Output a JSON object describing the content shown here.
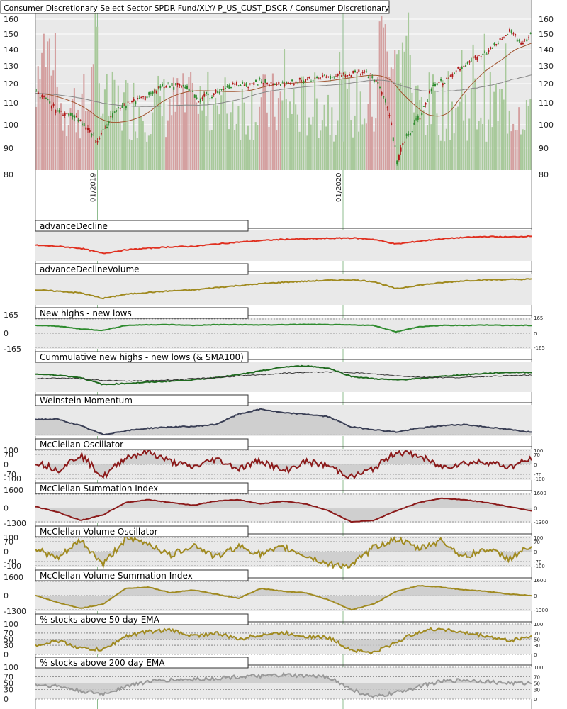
{
  "title": "Consumer Discretionary Select Sector SPDR Fund/XLY/ P_US_CUST_DSCR / Consumer Discretionary",
  "colors": {
    "background": "#e9e9e9",
    "grid": "#ffffff",
    "up_candle": "#2e8b2e",
    "down_candle": "#b01818",
    "volume_up": "#a8c99b",
    "volume_down": "#d4a0a0",
    "sma_short": "#a0522d",
    "sma_long": "#888888",
    "vertical_marker": "#8fbc8f"
  },
  "chart_data": [
    {
      "type": "candlestick",
      "title": "Consumer Discretionary Select Sector SPDR Fund/XLY/ P_US_CUST_DSCR / Consumer Discretionary",
      "ylim": [
        80,
        160
      ],
      "yticks_left": [
        "160",
        "150",
        "140",
        "130",
        "120",
        "110",
        "100",
        "90",
        "80"
      ],
      "yticks_right": [
        "160",
        "150",
        "140",
        "130",
        "120",
        "110",
        "100",
        "90",
        "80"
      ],
      "x_labels": [
        "01/2019",
        "01/2020"
      ],
      "price_keypoints": [
        {
          "t": 0.0,
          "v": 115
        },
        {
          "t": 0.04,
          "v": 107
        },
        {
          "t": 0.08,
          "v": 103
        },
        {
          "t": 0.11,
          "v": 97
        },
        {
          "t": 0.12,
          "v": 93
        },
        {
          "t": 0.14,
          "v": 100
        },
        {
          "t": 0.17,
          "v": 108
        },
        {
          "t": 0.22,
          "v": 113
        },
        {
          "t": 0.26,
          "v": 119
        },
        {
          "t": 0.3,
          "v": 118
        },
        {
          "t": 0.33,
          "v": 112
        },
        {
          "t": 0.36,
          "v": 115
        },
        {
          "t": 0.4,
          "v": 119
        },
        {
          "t": 0.45,
          "v": 121
        },
        {
          "t": 0.5,
          "v": 120
        },
        {
          "t": 0.55,
          "v": 122
        },
        {
          "t": 0.61,
          "v": 125
        },
        {
          "t": 0.67,
          "v": 126
        },
        {
          "t": 0.69,
          "v": 121
        },
        {
          "t": 0.71,
          "v": 110
        },
        {
          "t": 0.73,
          "v": 85
        },
        {
          "t": 0.75,
          "v": 95
        },
        {
          "t": 0.78,
          "v": 105
        },
        {
          "t": 0.8,
          "v": 118
        },
        {
          "t": 0.83,
          "v": 122
        },
        {
          "t": 0.86,
          "v": 130
        },
        {
          "t": 0.9,
          "v": 137
        },
        {
          "t": 0.94,
          "v": 146
        },
        {
          "t": 0.96,
          "v": 153
        },
        {
          "t": 0.98,
          "v": 144
        },
        {
          "t": 1.0,
          "v": 149
        }
      ]
    },
    {
      "type": "line",
      "title": "advanceDecline",
      "series": [
        {
          "values": [
            0.55,
            0.5,
            0.42,
            0.2,
            0.35,
            0.42,
            0.48,
            0.5,
            0.6,
            0.68,
            0.75,
            0.8,
            0.82,
            0.84,
            0.86,
            0.8,
            0.6,
            0.72,
            0.82,
            0.88,
            0.92,
            0.9,
            0.94
          ]
        }
      ]
    },
    {
      "type": "line",
      "title": "advanceDeclineVolume",
      "series": [
        {
          "values": [
            0.5,
            0.45,
            0.38,
            0.15,
            0.32,
            0.4,
            0.46,
            0.5,
            0.6,
            0.68,
            0.76,
            0.82,
            0.86,
            0.9,
            0.92,
            0.85,
            0.55,
            0.7,
            0.8,
            0.88,
            0.92,
            0.93,
            0.95
          ]
        }
      ]
    },
    {
      "type": "line",
      "title": "New highs - new lows",
      "yticks_left": [
        "165",
        "0",
        "-165"
      ],
      "yticks_right": [
        "165",
        "0",
        "-165"
      ],
      "series": [
        {
          "values": [
            0.55,
            0.5,
            0.3,
            0.2,
            0.55,
            0.6,
            0.6,
            0.55,
            0.6,
            0.6,
            0.58,
            0.6,
            0.62,
            0.6,
            0.58,
            0.55,
            0.1,
            0.45,
            0.55,
            0.55,
            0.58,
            0.55,
            0.55
          ]
        }
      ]
    },
    {
      "type": "line",
      "title": "Cummulative new highs - new lows (& SMA100)",
      "series": [
        {
          "values": [
            0.65,
            0.6,
            0.5,
            0.2,
            0.25,
            0.3,
            0.35,
            0.4,
            0.5,
            0.62,
            0.78,
            0.95,
            1.0,
            0.9,
            0.55,
            0.45,
            0.4,
            0.45,
            0.55,
            0.62,
            0.68,
            0.72,
            0.72
          ]
        },
        {
          "values": [
            0.45,
            0.48,
            0.45,
            0.38,
            0.35,
            0.36,
            0.4,
            0.45,
            0.5,
            0.56,
            0.62,
            0.68,
            0.72,
            0.74,
            0.72,
            0.65,
            0.58,
            0.52,
            0.5,
            0.5,
            0.55,
            0.58,
            0.6
          ]
        }
      ]
    },
    {
      "type": "area",
      "title": "Weinstein Momentum",
      "series": [
        {
          "values": [
            0.6,
            0.6,
            0.35,
            0.0,
            0.15,
            0.25,
            0.3,
            0.32,
            0.4,
            0.8,
            1.0,
            0.85,
            0.8,
            0.7,
            0.3,
            0.2,
            0.1,
            0.25,
            0.35,
            0.4,
            0.3,
            0.2,
            0.1
          ]
        }
      ]
    },
    {
      "type": "area",
      "title": "McClellan Oscillator",
      "yticks_left": [
        "100",
        "70",
        "0",
        "-70",
        "-100"
      ],
      "yticks_right": [
        "100",
        "70",
        "0",
        "-70",
        "-100"
      ],
      "series": [
        {
          "values": [
            0.2,
            -0.4,
            0.7,
            -0.9,
            0.5,
            0.9,
            0.2,
            -0.2,
            0.4,
            -0.3,
            0.3,
            -0.5,
            0.2,
            -0.1,
            -0.9,
            -0.3,
            0.9,
            0.6,
            -0.2,
            0.1,
            0.2,
            -0.2,
            0.4
          ]
        }
      ]
    },
    {
      "type": "area",
      "title": "McClellan Summation Index",
      "yticks_left": [
        "1600",
        "0",
        "-1300"
      ],
      "yticks_right": [
        "1600",
        "0",
        "-1300"
      ],
      "series": [
        {
          "values": [
            0.1,
            -0.3,
            -0.9,
            -0.5,
            0.4,
            0.6,
            0.4,
            0.2,
            0.5,
            0.6,
            0.3,
            0.5,
            0.3,
            -0.2,
            -1.0,
            -0.9,
            -0.2,
            0.4,
            0.7,
            0.6,
            0.4,
            0.1,
            -0.2
          ]
        }
      ]
    },
    {
      "type": "area",
      "title": "McClellan Volume Oscillator",
      "yticks_left": [
        "100",
        "70",
        "0",
        "-70",
        "-100"
      ],
      "yticks_right": [
        "100",
        "70",
        "0",
        "-70",
        "-100"
      ],
      "series": [
        {
          "values": [
            0.2,
            -0.5,
            0.8,
            -0.9,
            0.9,
            0.6,
            -0.3,
            0.5,
            -0.4,
            0.4,
            -0.2,
            0.3,
            -0.3,
            -0.9,
            -1.0,
            0.3,
            0.9,
            0.2,
            0.8,
            -0.4,
            0.2,
            -0.5,
            0.4
          ]
        }
      ]
    },
    {
      "type": "area",
      "title": "McClellan Volume Summation Index",
      "yticks_left": [
        "1600",
        "0",
        "-1300"
      ],
      "yticks_right": [
        "1600",
        "0",
        "-1300"
      ],
      "series": [
        {
          "values": [
            0.0,
            -0.5,
            -0.9,
            -0.6,
            0.5,
            0.6,
            0.2,
            0.4,
            0.1,
            -0.2,
            0.5,
            0.3,
            0.2,
            -0.3,
            -1.0,
            -0.6,
            0.3,
            0.7,
            0.6,
            0.4,
            0.3,
            0.1,
            0.0
          ]
        }
      ]
    },
    {
      "type": "line",
      "title": "% stocks above 50 day EMA",
      "yticks_left": [
        "100",
        "70",
        "50",
        "30",
        "0"
      ],
      "yticks_right": [
        "100",
        "70",
        "50",
        "30",
        "0"
      ],
      "series": [
        {
          "values": [
            30,
            45,
            20,
            15,
            60,
            75,
            80,
            60,
            70,
            50,
            65,
            70,
            60,
            55,
            15,
            5,
            40,
            75,
            85,
            70,
            60,
            45,
            60
          ]
        }
      ]
    },
    {
      "type": "area",
      "title": "% stocks above 200 day EMA",
      "yticks_left": [
        "100",
        "70",
        "50",
        "30",
        "0"
      ],
      "yticks_right": [
        "100",
        "70",
        "50",
        "30",
        "0"
      ],
      "series": [
        {
          "values": [
            45,
            40,
            25,
            15,
            40,
            55,
            60,
            62,
            65,
            70,
            72,
            75,
            72,
            70,
            30,
            5,
            20,
            40,
            55,
            60,
            55,
            50,
            50
          ]
        }
      ]
    }
  ]
}
